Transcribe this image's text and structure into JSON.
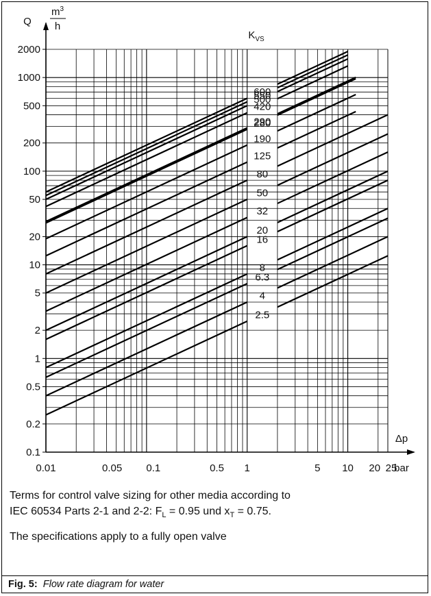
{
  "chart_data": {
    "type": "line",
    "xscale": "log",
    "yscale": "log",
    "xlabel": "Δp",
    "xunit": "bar",
    "ylabel": "Q",
    "yunit_num": "m3",
    "yunit_den": "h",
    "xlim": [
      0.01,
      25
    ],
    "ylim": [
      0.1,
      2000
    ],
    "x_ticks": [
      {
        "v": 0.01,
        "label": "0.01"
      },
      {
        "v": 0.05,
        "label": "0.05"
      },
      {
        "v": 0.1,
        "label": "0.1"
      },
      {
        "v": 0.5,
        "label": "0.5"
      },
      {
        "v": 1,
        "label": "1"
      },
      {
        "v": 5,
        "label": "5"
      },
      {
        "v": 10,
        "label": "10"
      },
      {
        "v": 20,
        "label": "20"
      },
      {
        "v": 25,
        "label": "25"
      }
    ],
    "y_ticks": [
      {
        "v": 0.1,
        "label": "0.1"
      },
      {
        "v": 0.2,
        "label": "0.2"
      },
      {
        "v": 0.5,
        "label": "0.5"
      },
      {
        "v": 1,
        "label": "1"
      },
      {
        "v": 2,
        "label": "2"
      },
      {
        "v": 5,
        "label": "5"
      },
      {
        "v": 10,
        "label": "10"
      },
      {
        "v": 20,
        "label": "20"
      },
      {
        "v": 50,
        "label": "50"
      },
      {
        "v": 100,
        "label": "100"
      },
      {
        "v": 200,
        "label": "200"
      },
      {
        "v": 500,
        "label": "500"
      },
      {
        "v": 1000,
        "label": "1000"
      },
      {
        "v": 2000,
        "label": "2000"
      }
    ],
    "legend_title": "K",
    "legend_title_sub": "VS",
    "gap_dp": [
      1,
      2
    ],
    "kvs_labels": [
      "600",
      "550",
      "500",
      "420",
      "290",
      "280",
      "190",
      "125",
      "80",
      "50",
      "32",
      "20",
      "16",
      "8",
      "6.3",
      "4",
      "2.5"
    ],
    "series": [
      {
        "kvs": 600,
        "dp_max": 10
      },
      {
        "kvs": 550,
        "dp_max": 10
      },
      {
        "kvs": 500,
        "dp_max": 10
      },
      {
        "kvs": 420,
        "dp_max": 10
      },
      {
        "kvs": 290,
        "dp_max": 12
      },
      {
        "kvs": 280,
        "dp_max": 12
      },
      {
        "kvs": 190,
        "dp_max": 12
      },
      {
        "kvs": 125,
        "dp_max": 12
      },
      {
        "kvs": 80,
        "dp_max": 25
      },
      {
        "kvs": 50,
        "dp_max": 25
      },
      {
        "kvs": 32,
        "dp_max": 25
      },
      {
        "kvs": 20,
        "dp_max": 25
      },
      {
        "kvs": 16,
        "dp_max": 25
      },
      {
        "kvs": 8,
        "dp_max": 25
      },
      {
        "kvs": 6.3,
        "dp_max": 25
      },
      {
        "kvs": 4,
        "dp_max": 25
      },
      {
        "kvs": 2.5,
        "dp_max": 25
      }
    ],
    "grid": true
  },
  "notes": {
    "line1": "Terms for control valve sizing for other media according to",
    "line2_prefix": "IEC 60534 Parts 2-1 and 2-2: F",
    "line2_sub1": "L",
    "line2_mid": " = 0.95 und x",
    "line2_sub2": "T",
    "line2_suffix": " = 0.75.",
    "line3": "The specifications apply to a fully open valve"
  },
  "caption": {
    "label": "Fig. 5:",
    "text": "Flow rate diagram for water"
  }
}
